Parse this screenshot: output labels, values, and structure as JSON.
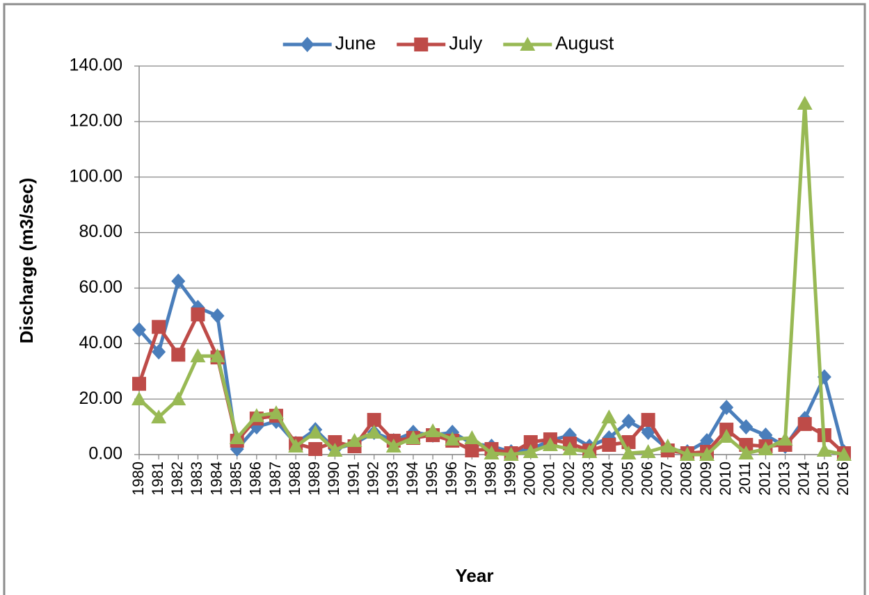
{
  "chart_data": {
    "type": "line",
    "y_label": "Discharge (m3/sec)",
    "x_label": "Year",
    "categories": [
      "1980",
      "1981",
      "1982",
      "1983",
      "1984",
      "1985",
      "1986",
      "1987",
      "1988",
      "1989",
      "1990",
      "1991",
      "1992",
      "1993",
      "1994",
      "1995",
      "1996",
      "1997",
      "1998",
      "1999",
      "2000",
      "2001",
      "2002",
      "2003",
      "2004",
      "2005",
      "2006",
      "2007",
      "2008",
      "2009",
      "2010",
      "2011",
      "2012",
      "2013",
      "2014",
      "2015",
      "2016"
    ],
    "series": [
      {
        "name": "June",
        "color": "#4a7ebb",
        "marker": "diamond",
        "values": [
          45,
          37,
          62.5,
          53,
          50,
          2,
          10,
          12,
          4,
          9,
          2,
          4,
          8,
          5,
          8,
          7,
          8,
          4,
          3,
          1,
          2,
          5,
          7,
          3,
          6,
          12,
          8,
          2,
          1,
          5,
          17,
          10,
          7,
          3,
          13,
          28,
          1
        ]
      },
      {
        "name": "July",
        "color": "#be4b48",
        "marker": "square",
        "values": [
          25.5,
          46,
          36,
          50.5,
          35,
          5,
          13,
          14,
          4,
          2,
          4.5,
          3,
          12.5,
          5,
          6,
          7,
          5,
          1.5,
          2,
          0.5,
          4.5,
          5.5,
          4,
          1.5,
          3.5,
          4.5,
          12.5,
          1.5,
          0.5,
          1,
          9,
          3.5,
          3,
          3.5,
          11,
          7,
          0.5
        ]
      },
      {
        "name": "August",
        "color": "#98b954",
        "marker": "triangle",
        "values": [
          20,
          13.5,
          20,
          35.5,
          35.5,
          6,
          14,
          15,
          3,
          8,
          1.5,
          5,
          8,
          3,
          6,
          8.5,
          5.5,
          6,
          0.5,
          0,
          1,
          3.5,
          2,
          1,
          13.5,
          0.5,
          1,
          3,
          0,
          0,
          6.5,
          0.5,
          2,
          5.5,
          126.5,
          1.5,
          0
        ]
      }
    ],
    "ylim": [
      0,
      140
    ],
    "yticks": [
      {
        "value": 0,
        "label": "0.00"
      },
      {
        "value": 20,
        "label": "20.00"
      },
      {
        "value": 40,
        "label": "40.00"
      },
      {
        "value": 60,
        "label": "60.00"
      },
      {
        "value": 80,
        "label": "80.00"
      },
      {
        "value": 100,
        "label": "100.00"
      },
      {
        "value": 120,
        "label": "120.00"
      },
      {
        "value": 140,
        "label": "140.00"
      }
    ],
    "grid": true,
    "legend": "top"
  }
}
